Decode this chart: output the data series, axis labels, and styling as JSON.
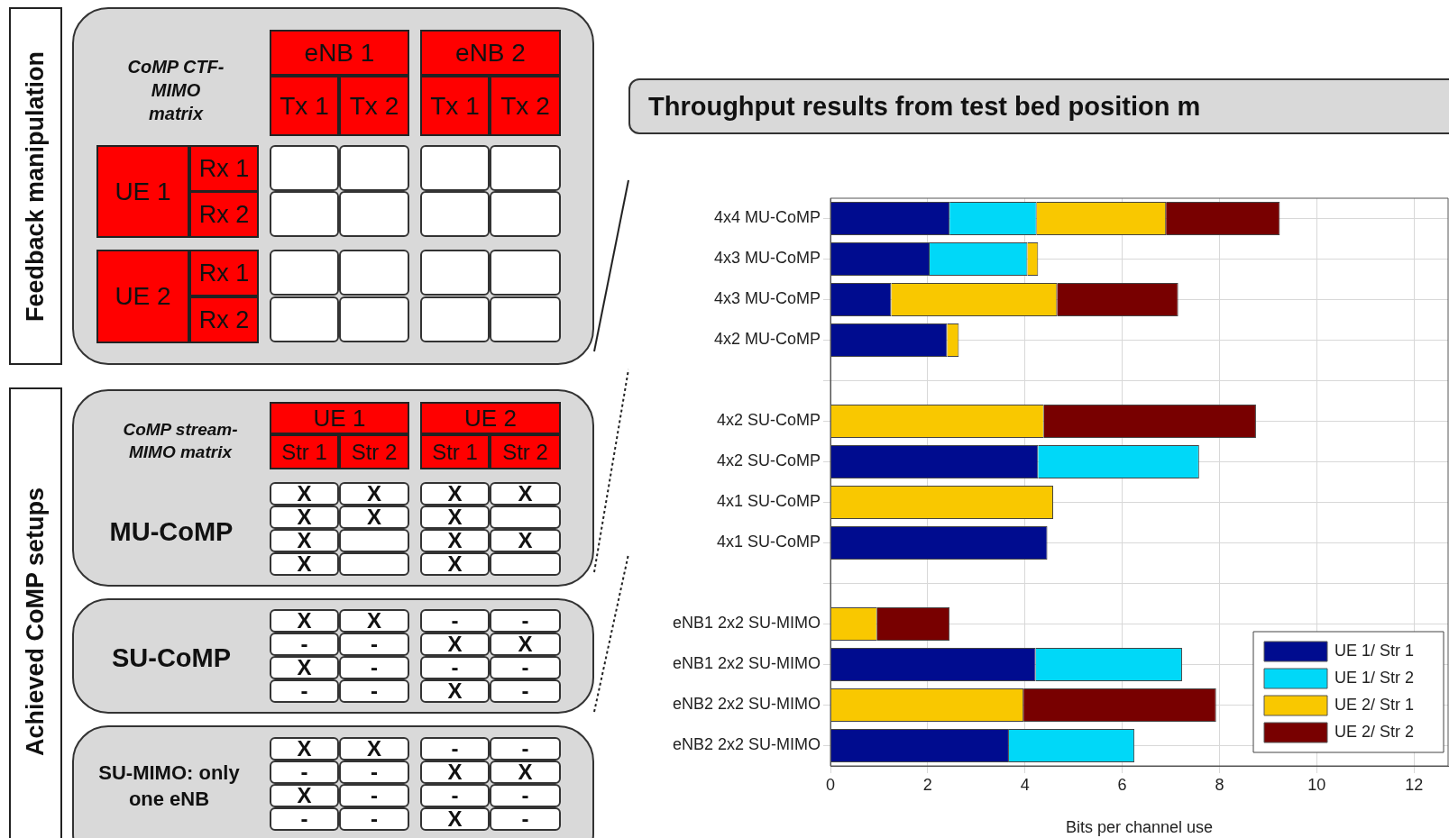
{
  "chart_data": {
    "type": "bar",
    "orientation": "horizontal",
    "stacked": true,
    "title": "Throughput results from test bed position m",
    "xlabel": "Bits per channel use",
    "categories": [
      "4x4 MU-CoMP",
      "4x3 MU-CoMP",
      "4x3 MU-CoMP",
      "4x2 MU-CoMP",
      null,
      "4x2 SU-CoMP",
      "4x2 SU-CoMP",
      "4x1 SU-CoMP",
      "4x1 SU-CoMP",
      null,
      "eNB1 2x2 SU-MIMO",
      "eNB1 2x2 SU-MIMO",
      "eNB2 2x2 SU-MIMO",
      "eNB2 2x2 SU-MIMO"
    ],
    "series": [
      {
        "name": "UE 1/ Str 1",
        "color": "#000c8f",
        "values": [
          2.45,
          2.04,
          1.25,
          2.4,
          null,
          null,
          4.27,
          null,
          4.46,
          null,
          null,
          4.22,
          null,
          3.67
        ]
      },
      {
        "name": "UE 1/ Str 2",
        "color": "#00d8f8",
        "values": [
          1.79,
          2.01,
          null,
          null,
          null,
          null,
          3.31,
          null,
          null,
          null,
          null,
          3.01,
          null,
          2.58
        ]
      },
      {
        "name": "UE 2/ Str 1",
        "color": "#f9c800",
        "values": [
          2.66,
          0.22,
          3.41,
          0.24,
          null,
          4.39,
          null,
          4.58,
          null,
          null,
          0.96,
          null,
          3.97,
          null
        ]
      },
      {
        "name": "UE 2/ Str 2",
        "color": "#780000",
        "values": [
          2.34,
          null,
          2.49,
          null,
          null,
          4.36,
          null,
          null,
          null,
          null,
          1.49,
          null,
          3.96,
          null
        ]
      }
    ],
    "xlim": [
      0,
      12.7
    ],
    "xticks": [
      0,
      2,
      4,
      6,
      8,
      10,
      12
    ],
    "grid": true,
    "legend": "bottom right",
    "annotations": [
      "Feedback manipulation",
      "Achieved CoMP setups",
      "CoMP CTF-MIMO matrix",
      "eNB 1",
      "eNB 2",
      "Tx 1",
      "Tx 2",
      "Tx 1",
      "Tx 2",
      "UE 1",
      "Rx 1",
      "Rx 2",
      "UE 2",
      "Rx 1",
      "Rx 2",
      "CoMP stream-MIMO matrix",
      "UE 1",
      "UE 2",
      "Str 1",
      "Str 2",
      "Str 1",
      "Str 2",
      "MU-CoMP",
      "SU-CoMP",
      "SU-MIMO: only one eNB",
      "X",
      "X",
      "X",
      "X",
      "X",
      "X",
      "X",
      "X",
      "X",
      "X",
      "X",
      "X",
      "X",
      "X",
      "-",
      "-",
      "-",
      "-",
      "X",
      "X",
      "X",
      "-",
      "-",
      "-",
      "-",
      "-",
      "X",
      "-",
      "X",
      "X",
      "-",
      "-",
      "-",
      "-",
      "X",
      "X",
      "X",
      "-",
      "-",
      "-",
      "-",
      "-",
      "X",
      "-"
    ]
  }
}
